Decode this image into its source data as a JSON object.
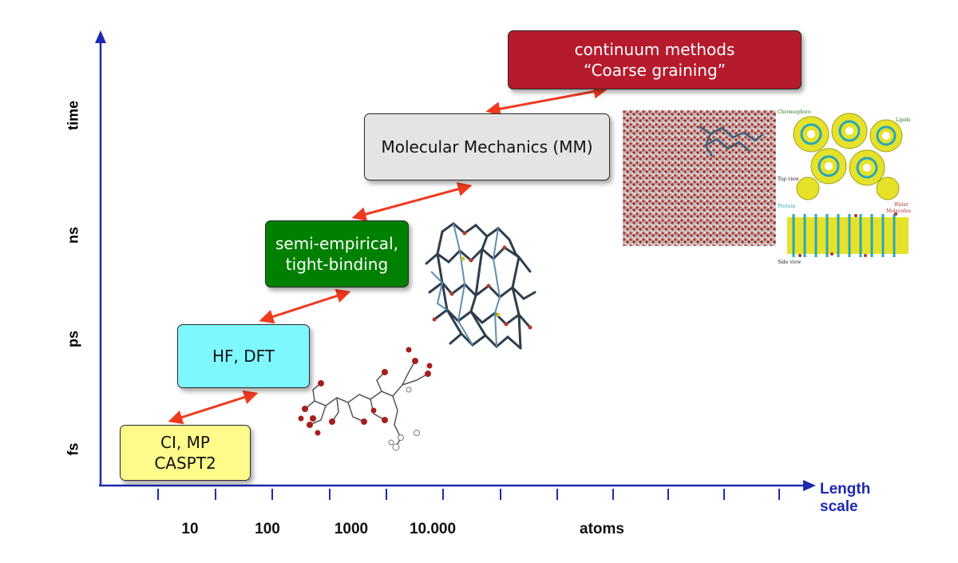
{
  "axes": {
    "y_title": "time",
    "y_ticks": [
      "ns",
      "ps",
      "fs"
    ],
    "x_title_line1": "Length",
    "x_title_line2": "scale",
    "x_labels": [
      "10",
      "100",
      "1000",
      "10.000",
      "atoms"
    ],
    "axis_color": "#1c2ab0",
    "arrow_color": "#f03a1e"
  },
  "boxes": {
    "ci_mp": {
      "line1": "CI, MP",
      "line2": "CASPT2",
      "color": "#fdfb8a"
    },
    "hf_dft": {
      "line1": "HF, DFT",
      "color": "#7ff7ff"
    },
    "semi": {
      "line1": "semi-empirical,",
      "line2": "tight-binding",
      "color": "#008000"
    },
    "mm": {
      "line1": "Molecular Mechanics (MM)",
      "color": "#e4e4e4"
    },
    "continuum": {
      "line1": "continuum methods",
      "line2": "“Coarse graining”",
      "color": "#b51b2d"
    }
  },
  "figures": {
    "membrane_labels": [
      "Chromophore",
      "Lipids",
      "Top view",
      "Protein",
      "Water",
      "Molecules",
      "Side view"
    ]
  }
}
